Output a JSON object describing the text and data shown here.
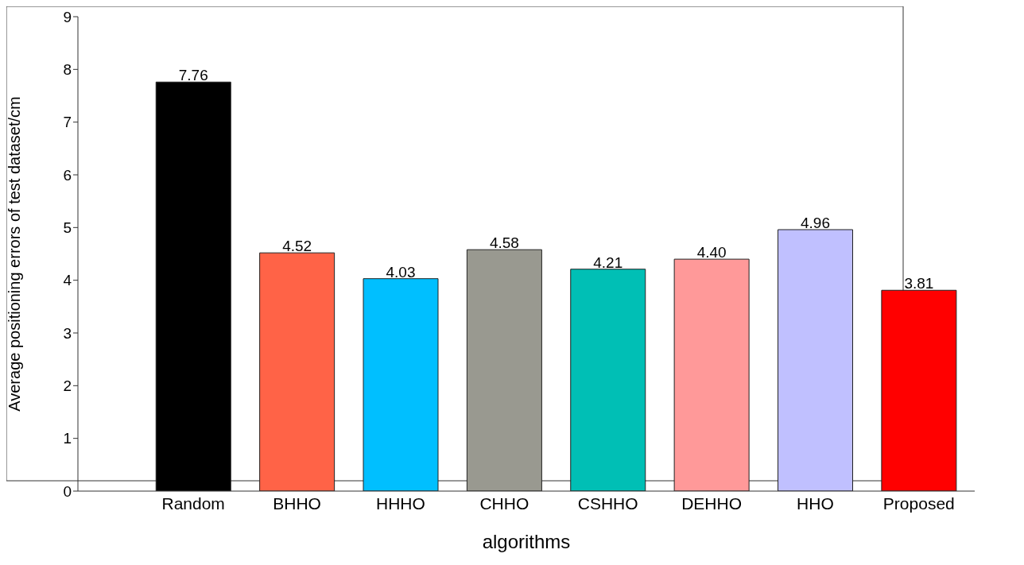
{
  "chart_data": {
    "type": "bar",
    "xlabel": "algorithms",
    "ylabel": "Average positioning errors of test dataset/cm",
    "categories": [
      "Random",
      "BHHO",
      "HHHO",
      "CHHO",
      "CSHHO",
      "DEHHO",
      "HHO",
      "Proposed"
    ],
    "values": [
      7.76,
      4.52,
      4.03,
      4.58,
      4.21,
      4.4,
      4.96,
      3.81
    ],
    "value_labels": [
      "7.76",
      "4.52",
      "4.03",
      "4.58",
      "4.21",
      "4.40",
      "4.96",
      "3.81"
    ],
    "colors": [
      "#000000",
      "#ff6347",
      "#00bfff",
      "#999990",
      "#00bfb5",
      "#ff9999",
      "#c0c0ff",
      "#ff0000"
    ],
    "ylim": [
      0,
      9
    ],
    "yticks": [
      0,
      1,
      2,
      3,
      4,
      5,
      6,
      7,
      8,
      9
    ],
    "grid": false
  }
}
